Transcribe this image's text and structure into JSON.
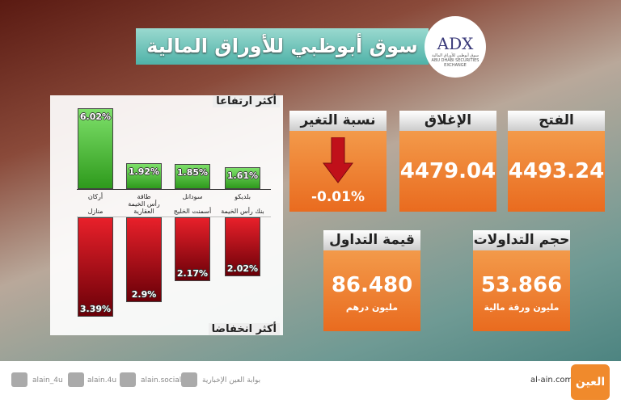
{
  "header": {
    "title": "سوق أبوظبي للأوراق المالية",
    "logo": {
      "mark": "ADX",
      "arabic": "سوق أبوظبي للأوراق المالية",
      "english": "ABU DHABI SECURITIES EXCHANGE"
    }
  },
  "tiles": [
    {
      "label": "الفتح",
      "value": "4493.24"
    },
    {
      "label": "الإغلاق",
      "value": "4479.04"
    },
    {
      "label": "نسبة التغير",
      "value": "-0.01%"
    },
    {
      "label": "حجم التداولات",
      "value": "53.866",
      "unit": "مليون ورقة مالية"
    },
    {
      "label": "قيمة التداول",
      "value": "86.480",
      "unit": "مليون درهم"
    }
  ],
  "chart_data": [
    {
      "type": "bar",
      "title": "أكثر ارتفاعا",
      "color": "#3aa820",
      "categories": [
        "أركان",
        "طاقة",
        "سودانل",
        "بلديكو"
      ],
      "values": [
        6.02,
        1.92,
        1.85,
        1.61
      ],
      "value_labels": [
        "6.02%",
        "1.92%",
        "1.85%",
        "1.61%"
      ]
    },
    {
      "type": "bar",
      "title": "أكثر انخفاضا",
      "color": "#c0101a",
      "categories": [
        "منازل",
        "رأس الخيمة العقارية",
        "أسمنت الخليج",
        "بنك رأس الخيمة"
      ],
      "values": [
        3.39,
        2.9,
        2.17,
        2.02
      ],
      "value_labels": [
        "3.39%",
        "2.9%",
        "2.17%",
        "2.02%"
      ]
    }
  ],
  "footer": {
    "site": "al-ain.com",
    "brand": "العين",
    "social": [
      "alain_4u",
      "alain.4u",
      "alain.social",
      "بوابة العين الإخبارية"
    ]
  }
}
